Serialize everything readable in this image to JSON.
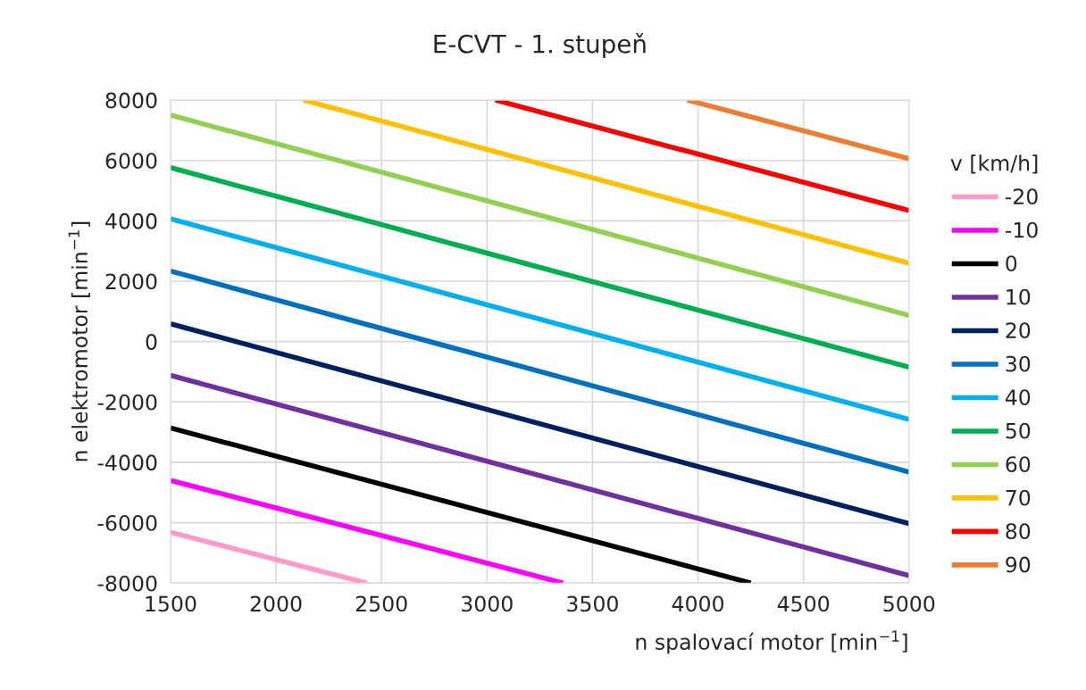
{
  "chart_data": {
    "type": "line",
    "title": "E-CVT - 1. stupeň",
    "xlabel": "n spalovací motor [min$^{−1}$]",
    "ylabel": "n elektromotor [min$^{−1}$]",
    "legend_title": "v [km/h]",
    "legend": "right",
    "xlim": [
      1500,
      5000
    ],
    "ylim": [
      -8000,
      8000
    ],
    "xticks": [
      1500,
      2000,
      2500,
      3000,
      3500,
      4000,
      4500,
      5000
    ],
    "yticks": [
      -8000,
      -6000,
      -4000,
      -2000,
      0,
      2000,
      4000,
      6000,
      8000
    ],
    "grid": true,
    "marker": "none",
    "line_style": "solid",
    "series": [
      {
        "name": "-20",
        "color": "#ff99cc",
        "x": [
          1500,
          2430
        ],
        "values": [
          -6320,
          -8000
        ]
      },
      {
        "name": "-10",
        "color": "#ff00ff",
        "x": [
          1500,
          3360
        ],
        "values": [
          -4600,
          -8000
        ]
      },
      {
        "name": "0",
        "color": "#000000",
        "x": [
          1500,
          4250
        ],
        "values": [
          -2860,
          -8000
        ]
      },
      {
        "name": "10",
        "color": "#7030a0",
        "x": [
          1500,
          5000
        ],
        "values": [
          -1120,
          -7755
        ]
      },
      {
        "name": "20",
        "color": "#002060",
        "x": [
          1500,
          5000
        ],
        "values": [
          587,
          -6030
        ]
      },
      {
        "name": "30",
        "color": "#0070c0",
        "x": [
          1500,
          5000
        ],
        "values": [
          2336,
          -4320
        ]
      },
      {
        "name": "40",
        "color": "#00b0f0",
        "x": [
          1500,
          5000
        ],
        "values": [
          4066,
          -2580
        ]
      },
      {
        "name": "50",
        "color": "#00b050",
        "x": [
          1500,
          5000
        ],
        "values": [
          5763,
          -850
        ]
      },
      {
        "name": "60",
        "color": "#92d050",
        "x": [
          1500,
          5000
        ],
        "values": [
          7504,
          870
        ]
      },
      {
        "name": "70",
        "color": "#ffc000",
        "x": [
          2130,
          5000
        ],
        "values": [
          8000,
          2600
        ]
      },
      {
        "name": "80",
        "color": "#ff0000",
        "x": [
          3040,
          5000
        ],
        "values": [
          8000,
          4340
        ]
      },
      {
        "name": "90",
        "color": "#ed7d31",
        "x": [
          3950,
          5000
        ],
        "values": [
          8000,
          6056
        ]
      }
    ]
  }
}
